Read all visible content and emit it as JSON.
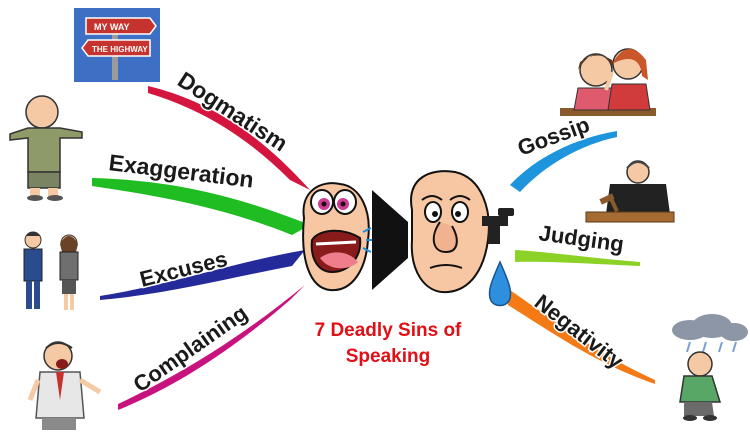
{
  "title": {
    "line1": "7 Deadly Sins of",
    "line2": "Speaking"
  },
  "sins": [
    {
      "label": "Dogmatism",
      "color": "#d4163f",
      "icon": "road-signs-icon",
      "signs": [
        "MY WAY",
        "THE HIGHWAY"
      ]
    },
    {
      "label": "Exaggeration",
      "color": "#1fbd22",
      "icon": "shrugging-man-icon"
    },
    {
      "label": "Excuses",
      "color": "#242a9a",
      "icon": "business-couple-icon"
    },
    {
      "label": "Complaining",
      "color": "#c8137f",
      "icon": "shouting-man-icon"
    },
    {
      "label": "Gossip",
      "color": "#1d94dc",
      "icon": "whispering-women-icon"
    },
    {
      "label": "Judging",
      "color": "#8cd126",
      "icon": "judge-with-gavel-icon"
    },
    {
      "label": "Negativity",
      "color": "#f47a16",
      "icon": "rain-cloud-man-icon"
    }
  ],
  "center": {
    "speaker": "speaking-face-icon",
    "listener": "listening-face-icon",
    "ear_tap": "faucet-icon",
    "water": "water-drop-icon"
  }
}
